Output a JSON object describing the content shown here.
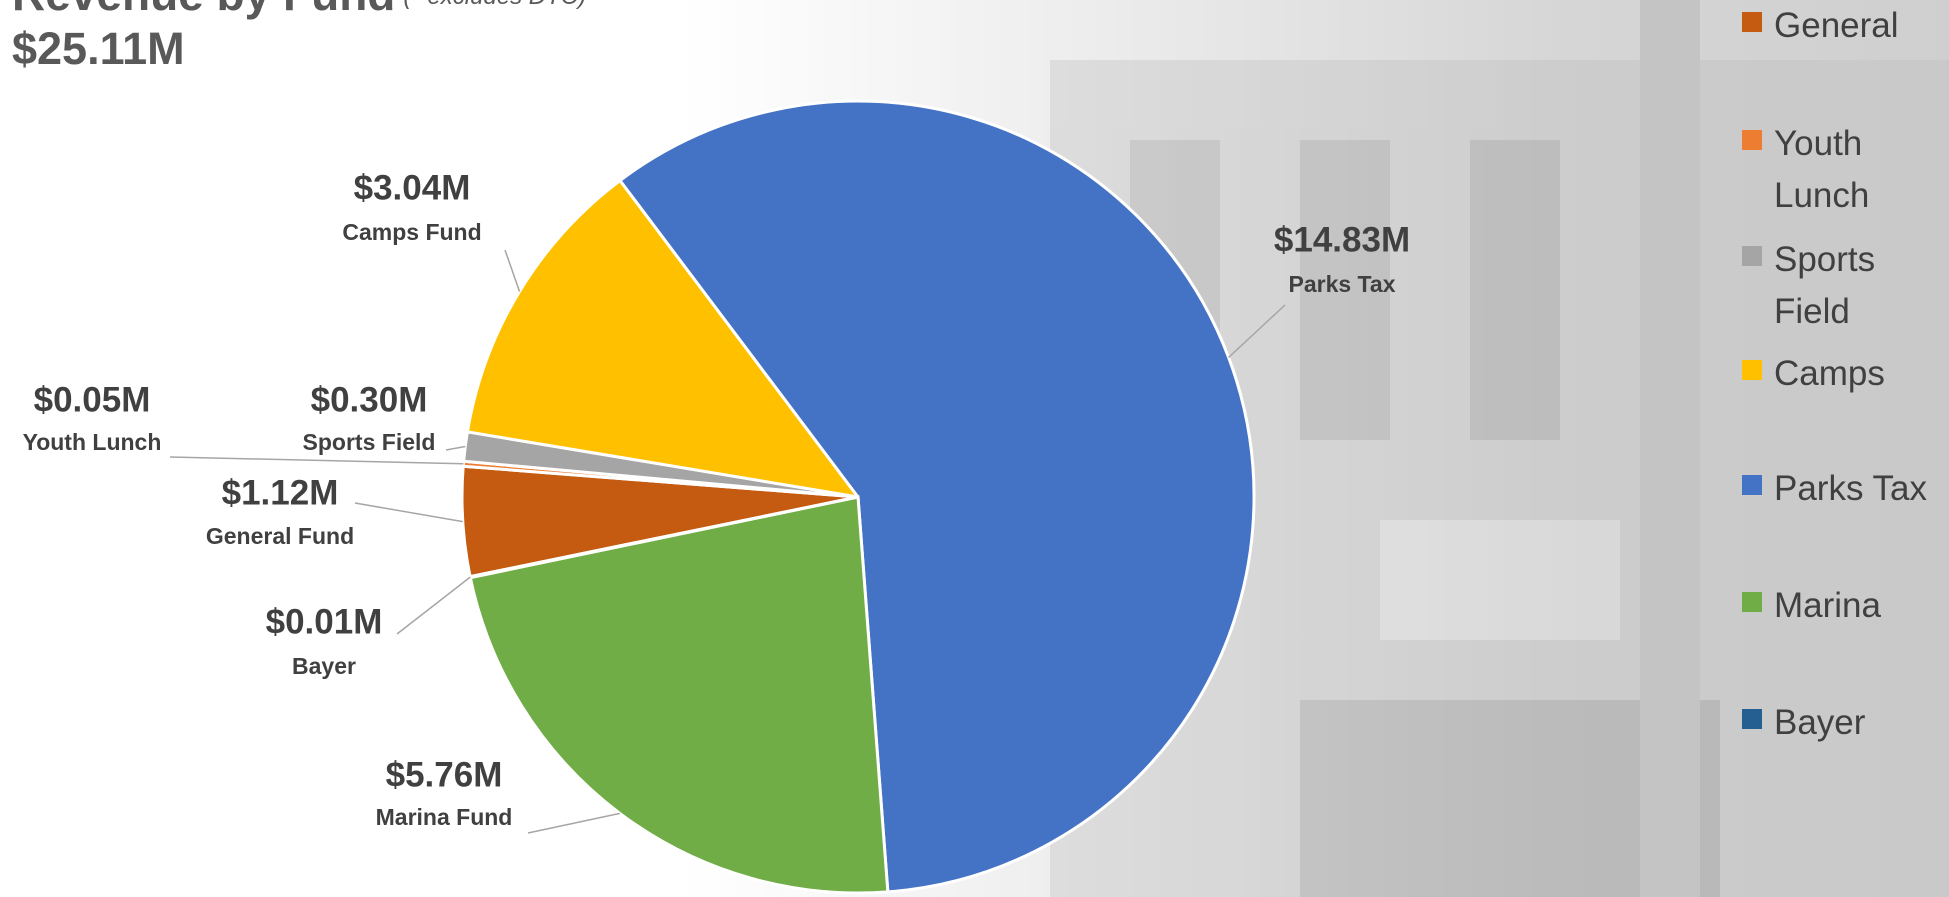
{
  "chart_data": {
    "type": "pie",
    "title": "Revenue by Fund",
    "subtitle": "(* excludes DTC)",
    "total_label": "$25.11M",
    "categories": [
      "General",
      "Youth Lunch",
      "Sports Field",
      "Camps",
      "Parks Tax",
      "Marina",
      "Bayer"
    ],
    "slice_labels": [
      "General Fund",
      "Youth Lunch",
      "Sports Field",
      "Camps Fund",
      "Parks Tax",
      "Marina Fund",
      "Bayer"
    ],
    "values": [
      1.12,
      0.05,
      0.3,
      3.04,
      14.83,
      5.76,
      0.01
    ],
    "value_labels": [
      "$1.12M",
      "$0.05M",
      "$0.30M",
      "$3.04M",
      "$14.83M",
      "$5.76M",
      "$0.01M"
    ],
    "colors": [
      "#c55a11",
      "#ed7d31",
      "#a5a5a5",
      "#ffc000",
      "#4472c4",
      "#70ad47",
      "#255e91"
    ],
    "legend": "right"
  }
}
